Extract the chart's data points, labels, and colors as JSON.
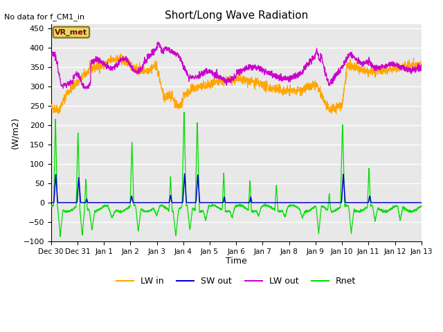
{
  "title": "Short/Long Wave Radiation",
  "no_data_label": "No data for f_CM1_in",
  "station_label": "VR_met",
  "ylabel": "(W/m2)",
  "xlabel": "Time",
  "ylim": [
    -100,
    460
  ],
  "yticks": [
    -100,
    -50,
    0,
    50,
    100,
    150,
    200,
    250,
    300,
    350,
    400,
    450
  ],
  "colors": {
    "LW_in": "#FFA500",
    "SW_out": "#0000CC",
    "LW_out": "#CC00CC",
    "Rnet": "#00DD00",
    "background": "#E8E8E8",
    "grid": "#FFFFFF"
  },
  "legend": [
    "LW in",
    "SW out",
    "LW out",
    "Rnet"
  ],
  "xtick_labels": [
    "Dec 30",
    "Dec 31",
    "Jan 1",
    "Jan 2",
    "Jan 3",
    "Jan 4",
    "Jan 5",
    "Jan 6",
    "Jan 7",
    "Jan 8",
    "Jan 9",
    "Jan 10",
    "Jan 11",
    "Jan 12",
    "Jan 13"
  ],
  "n_points": 2000
}
